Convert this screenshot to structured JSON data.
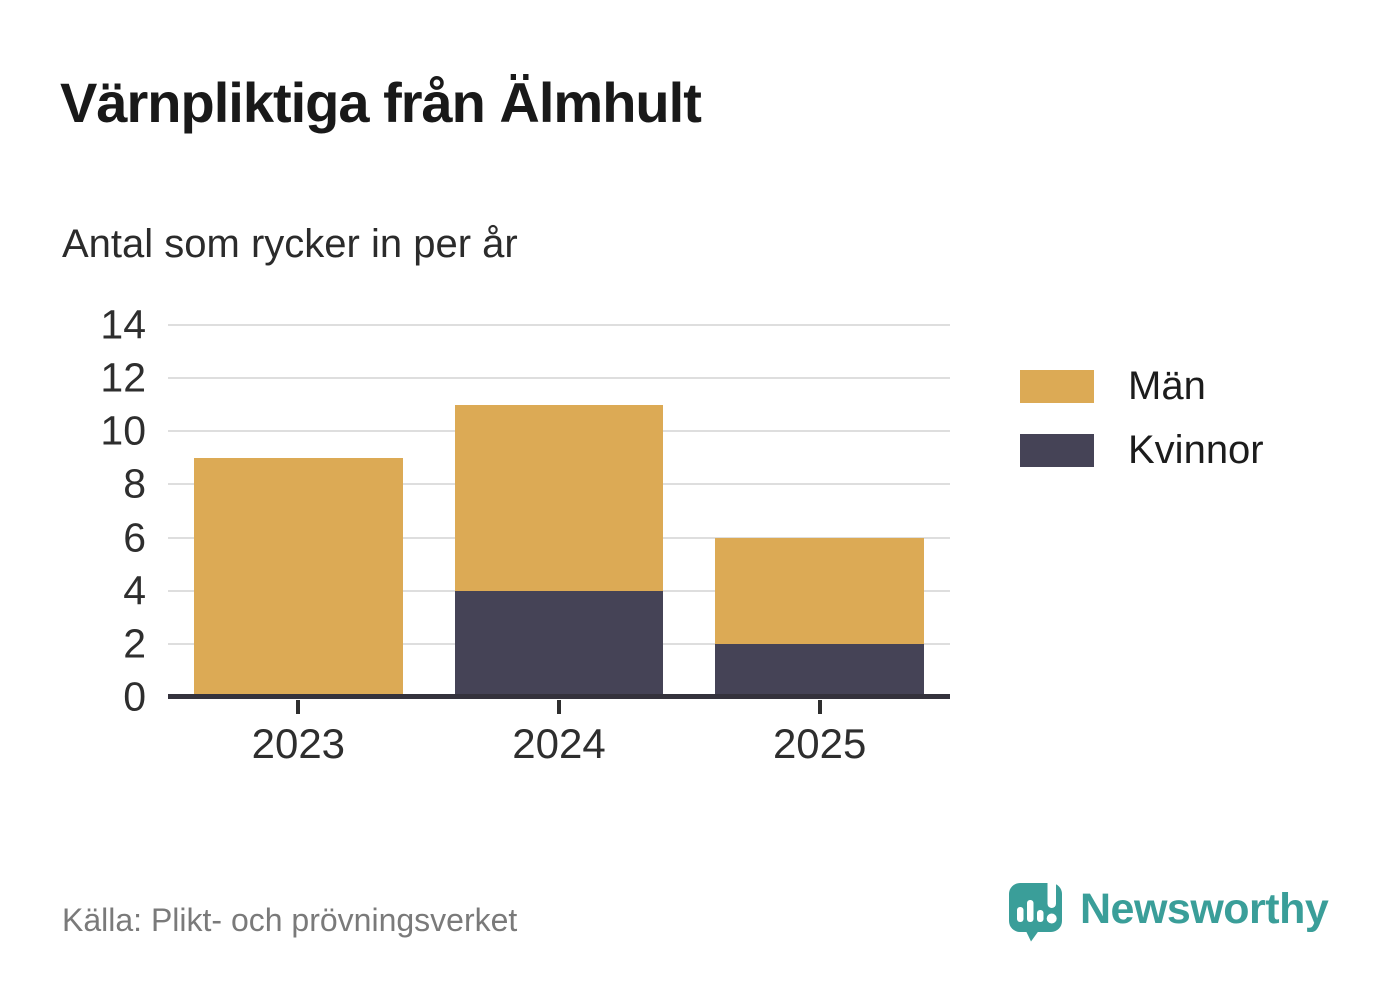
{
  "header": {
    "title": "Värnpliktiga från Älmhult",
    "subtitle": "Antal som rycker in per år"
  },
  "chart_data": {
    "type": "bar",
    "stacked": true,
    "title": "Värnpliktiga från Älmhult",
    "subtitle": "Antal som rycker in per år",
    "categories": [
      "2023",
      "2024",
      "2025"
    ],
    "series": [
      {
        "name": "Kvinnor",
        "color": "#454356",
        "values": [
          0,
          4,
          2
        ]
      },
      {
        "name": "Män",
        "color": "#dcaa55",
        "values": [
          9,
          7,
          4
        ]
      }
    ],
    "stack_totals": [
      9,
      11,
      6
    ],
    "xlabel": "",
    "ylabel": "",
    "ylim": [
      0,
      14
    ],
    "yticks": [
      0,
      2,
      4,
      6,
      8,
      10,
      12,
      14
    ],
    "grid": true,
    "legend_position": "right-top"
  },
  "legend": {
    "items": [
      {
        "label": "Män",
        "color": "#dcaa55"
      },
      {
        "label": "Kvinnor",
        "color": "#454356"
      }
    ]
  },
  "footer": {
    "source": "Källa: Plikt- och prövningsverket",
    "brand": "Newsworthy"
  },
  "colors": {
    "men": "#dcaa55",
    "women": "#454356",
    "brand_teal": "#3a9e99",
    "grid": "#dedede",
    "axis": "#34323c",
    "title_text": "#191919",
    "muted_text": "#7a7a7a"
  }
}
